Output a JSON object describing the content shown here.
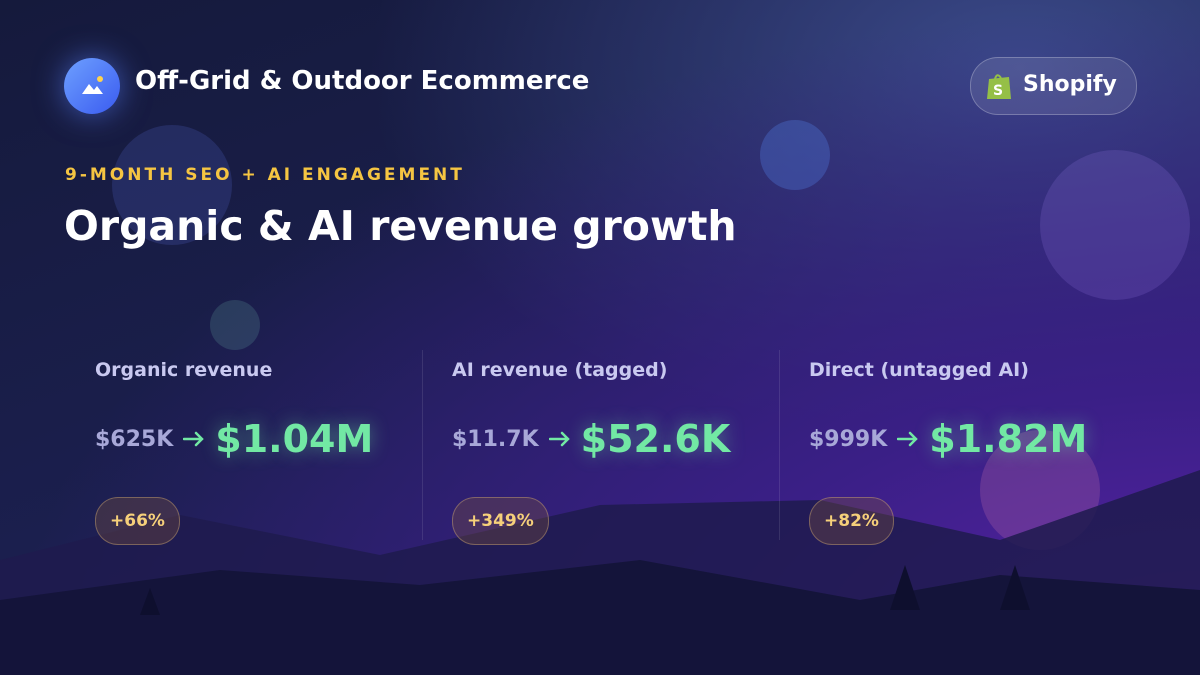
{
  "header": {
    "brand": "Off-Grid & Outdoor Ecommerce",
    "platform": "Shopify"
  },
  "eyebrow": "9-MONTH SEO + AI ENGAGEMENT",
  "title": "Organic & AI revenue growth",
  "metrics": [
    {
      "label": "Organic revenue",
      "before": "$625K",
      "after": "$1.04M",
      "change": "+66%"
    },
    {
      "label": "AI revenue (tagged)",
      "before": "$11.7K",
      "after": "$52.6K",
      "change": "+349%"
    },
    {
      "label": "Direct (untagged AI)",
      "before": "$999K",
      "after": "$1.82M",
      "change": "+82%"
    }
  ]
}
